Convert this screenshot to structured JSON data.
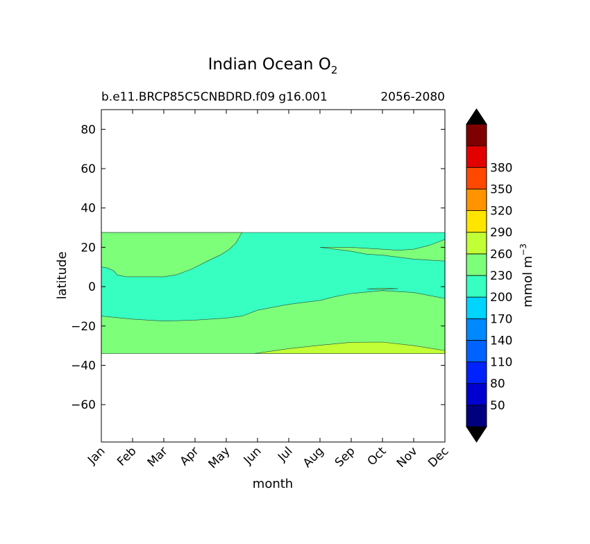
{
  "chart_data": {
    "type": "contourf",
    "title": "Indian Ocean O",
    "title_subscript": "2",
    "subtitle_left": "b.e11.BRCP85C5CNBDRD.f09 g16.001",
    "subtitle_right": "2056-2080",
    "xlabel": "month",
    "ylabel": "latitude",
    "x_categories": [
      "Jan",
      "Feb",
      "Mar",
      "Apr",
      "May",
      "Jun",
      "Jul",
      "Aug",
      "Sep",
      "Oct",
      "Nov",
      "Dec"
    ],
    "y_ticks": [
      80,
      60,
      40,
      20,
      0,
      -20,
      -40,
      -60
    ],
    "y_tick_labels": [
      "80",
      "60",
      "40",
      "20",
      "0",
      "−20",
      "−40",
      "−60"
    ],
    "ylim": [
      -79,
      90
    ],
    "data_lat_range": [
      -34,
      27.5
    ],
    "colorbar": {
      "label": "mmol m",
      "label_superscript": "−3",
      "tick_labels": [
        "50",
        "80",
        "110",
        "140",
        "170",
        "200",
        "230",
        "260",
        "290",
        "320",
        "350",
        "380"
      ],
      "extend": "both",
      "under_color": "#000000",
      "over_color": "#000000",
      "colors": [
        "#00007f",
        "#0000d0",
        "#0022ff",
        "#0062ff",
        "#0088ff",
        "#00d4ff",
        "#36ffc1",
        "#7dff7a",
        "#c1ff36",
        "#ffe500",
        "#ff9400",
        "#ff4800",
        "#e30000",
        "#7f0000"
      ]
    },
    "bands": [
      {
        "level": "170-200",
        "color": "#36ffc1",
        "region": "full data band (base fill)",
        "path": [
          [
            0,
            27.5
          ],
          [
            11,
            27.5
          ],
          [
            11,
            -34
          ],
          [
            0,
            -34
          ]
        ]
      },
      {
        "level": "200-230",
        "color": "#7dff7a",
        "region": "north-west",
        "path": [
          [
            0,
            27.5
          ],
          [
            4.5,
            27.5
          ],
          [
            4.3,
            22
          ],
          [
            4.1,
            19
          ],
          [
            3.8,
            16
          ],
          [
            3.4,
            13
          ],
          [
            2.9,
            9
          ],
          [
            2.4,
            6
          ],
          [
            2,
            5
          ],
          [
            1.5,
            5
          ],
          [
            0.8,
            5
          ],
          [
            0.5,
            6
          ],
          [
            0.4,
            8
          ],
          [
            0.2,
            9.5
          ],
          [
            0,
            10
          ]
        ]
      },
      {
        "level": "200-230",
        "color": "#7dff7a",
        "region": "north-east",
        "path": [
          [
            7,
            20
          ],
          [
            8,
            20
          ],
          [
            9,
            19
          ],
          [
            9.5,
            18.5
          ],
          [
            10,
            19
          ],
          [
            10.5,
            21
          ],
          [
            11,
            24
          ],
          [
            11,
            13
          ],
          [
            10,
            14
          ],
          [
            9.5,
            15
          ],
          [
            9,
            16
          ],
          [
            8.5,
            16.5
          ],
          [
            8,
            18
          ],
          [
            7.5,
            19
          ]
        ]
      },
      {
        "level": "200-230",
        "color": "#7dff7a",
        "region": "equator sliver",
        "path": [
          [
            8.5,
            -1.2
          ],
          [
            9,
            -0.8
          ],
          [
            9.5,
            -1
          ],
          [
            9,
            -1.5
          ]
        ]
      },
      {
        "level": "200-230",
        "color": "#7dff7a",
        "region": "south",
        "path": [
          [
            0,
            -15
          ],
          [
            1,
            -16.5
          ],
          [
            2,
            -17.5
          ],
          [
            3,
            -17
          ],
          [
            4,
            -16
          ],
          [
            4.5,
            -15
          ],
          [
            5,
            -12
          ],
          [
            6,
            -9
          ],
          [
            7,
            -7
          ],
          [
            7.5,
            -5
          ],
          [
            8,
            -3.5
          ],
          [
            9,
            -2
          ],
          [
            10,
            -3
          ],
          [
            11,
            -6
          ],
          [
            11,
            -34
          ],
          [
            0,
            -34
          ]
        ]
      },
      {
        "level": "230-260",
        "color": "#c1ff36",
        "region": "south-east corner",
        "path": [
          [
            4.9,
            -34
          ],
          [
            6,
            -31.5
          ],
          [
            7,
            -29.8
          ],
          [
            8,
            -28.3
          ],
          [
            9,
            -28.2
          ],
          [
            10,
            -30
          ],
          [
            11,
            -32.5
          ],
          [
            11,
            -34
          ]
        ]
      }
    ]
  }
}
